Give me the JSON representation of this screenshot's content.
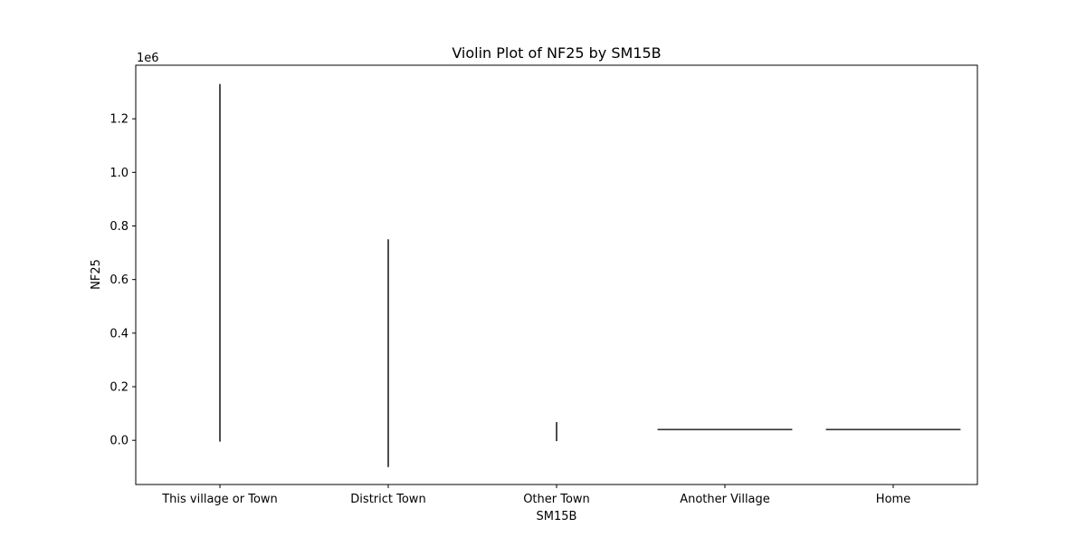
{
  "chart_data": {
    "type": "violin",
    "title": "Violin Plot of NF25 by SM15B",
    "xlabel": "SM15B",
    "ylabel": "NF25",
    "y_offset_label": "1e6",
    "ylim": [
      -0.165,
      1.4
    ],
    "yticks": [
      0.0,
      0.2,
      0.4,
      0.6,
      0.8,
      1.0,
      1.2
    ],
    "ytick_labels": [
      "0.0",
      "0.2",
      "0.4",
      "0.6",
      "0.8",
      "1.0",
      "1.2"
    ],
    "categories": [
      "This village or Town",
      "District Town",
      "Other Town",
      "Another Village",
      "Home"
    ],
    "series": [
      {
        "category": "This village or Town",
        "shape": "vertical",
        "min": -0.005,
        "max": 1.33
      },
      {
        "category": "District Town",
        "shape": "vertical",
        "min": -0.1,
        "max": 0.75
      },
      {
        "category": "Other Town",
        "shape": "vertical",
        "min": -0.003,
        "max": 0.068
      },
      {
        "category": "Another Village",
        "shape": "horizontal",
        "value": 0.04
      },
      {
        "category": "Home",
        "shape": "horizontal",
        "value": 0.04
      }
    ],
    "grid": false,
    "legend": "none"
  }
}
